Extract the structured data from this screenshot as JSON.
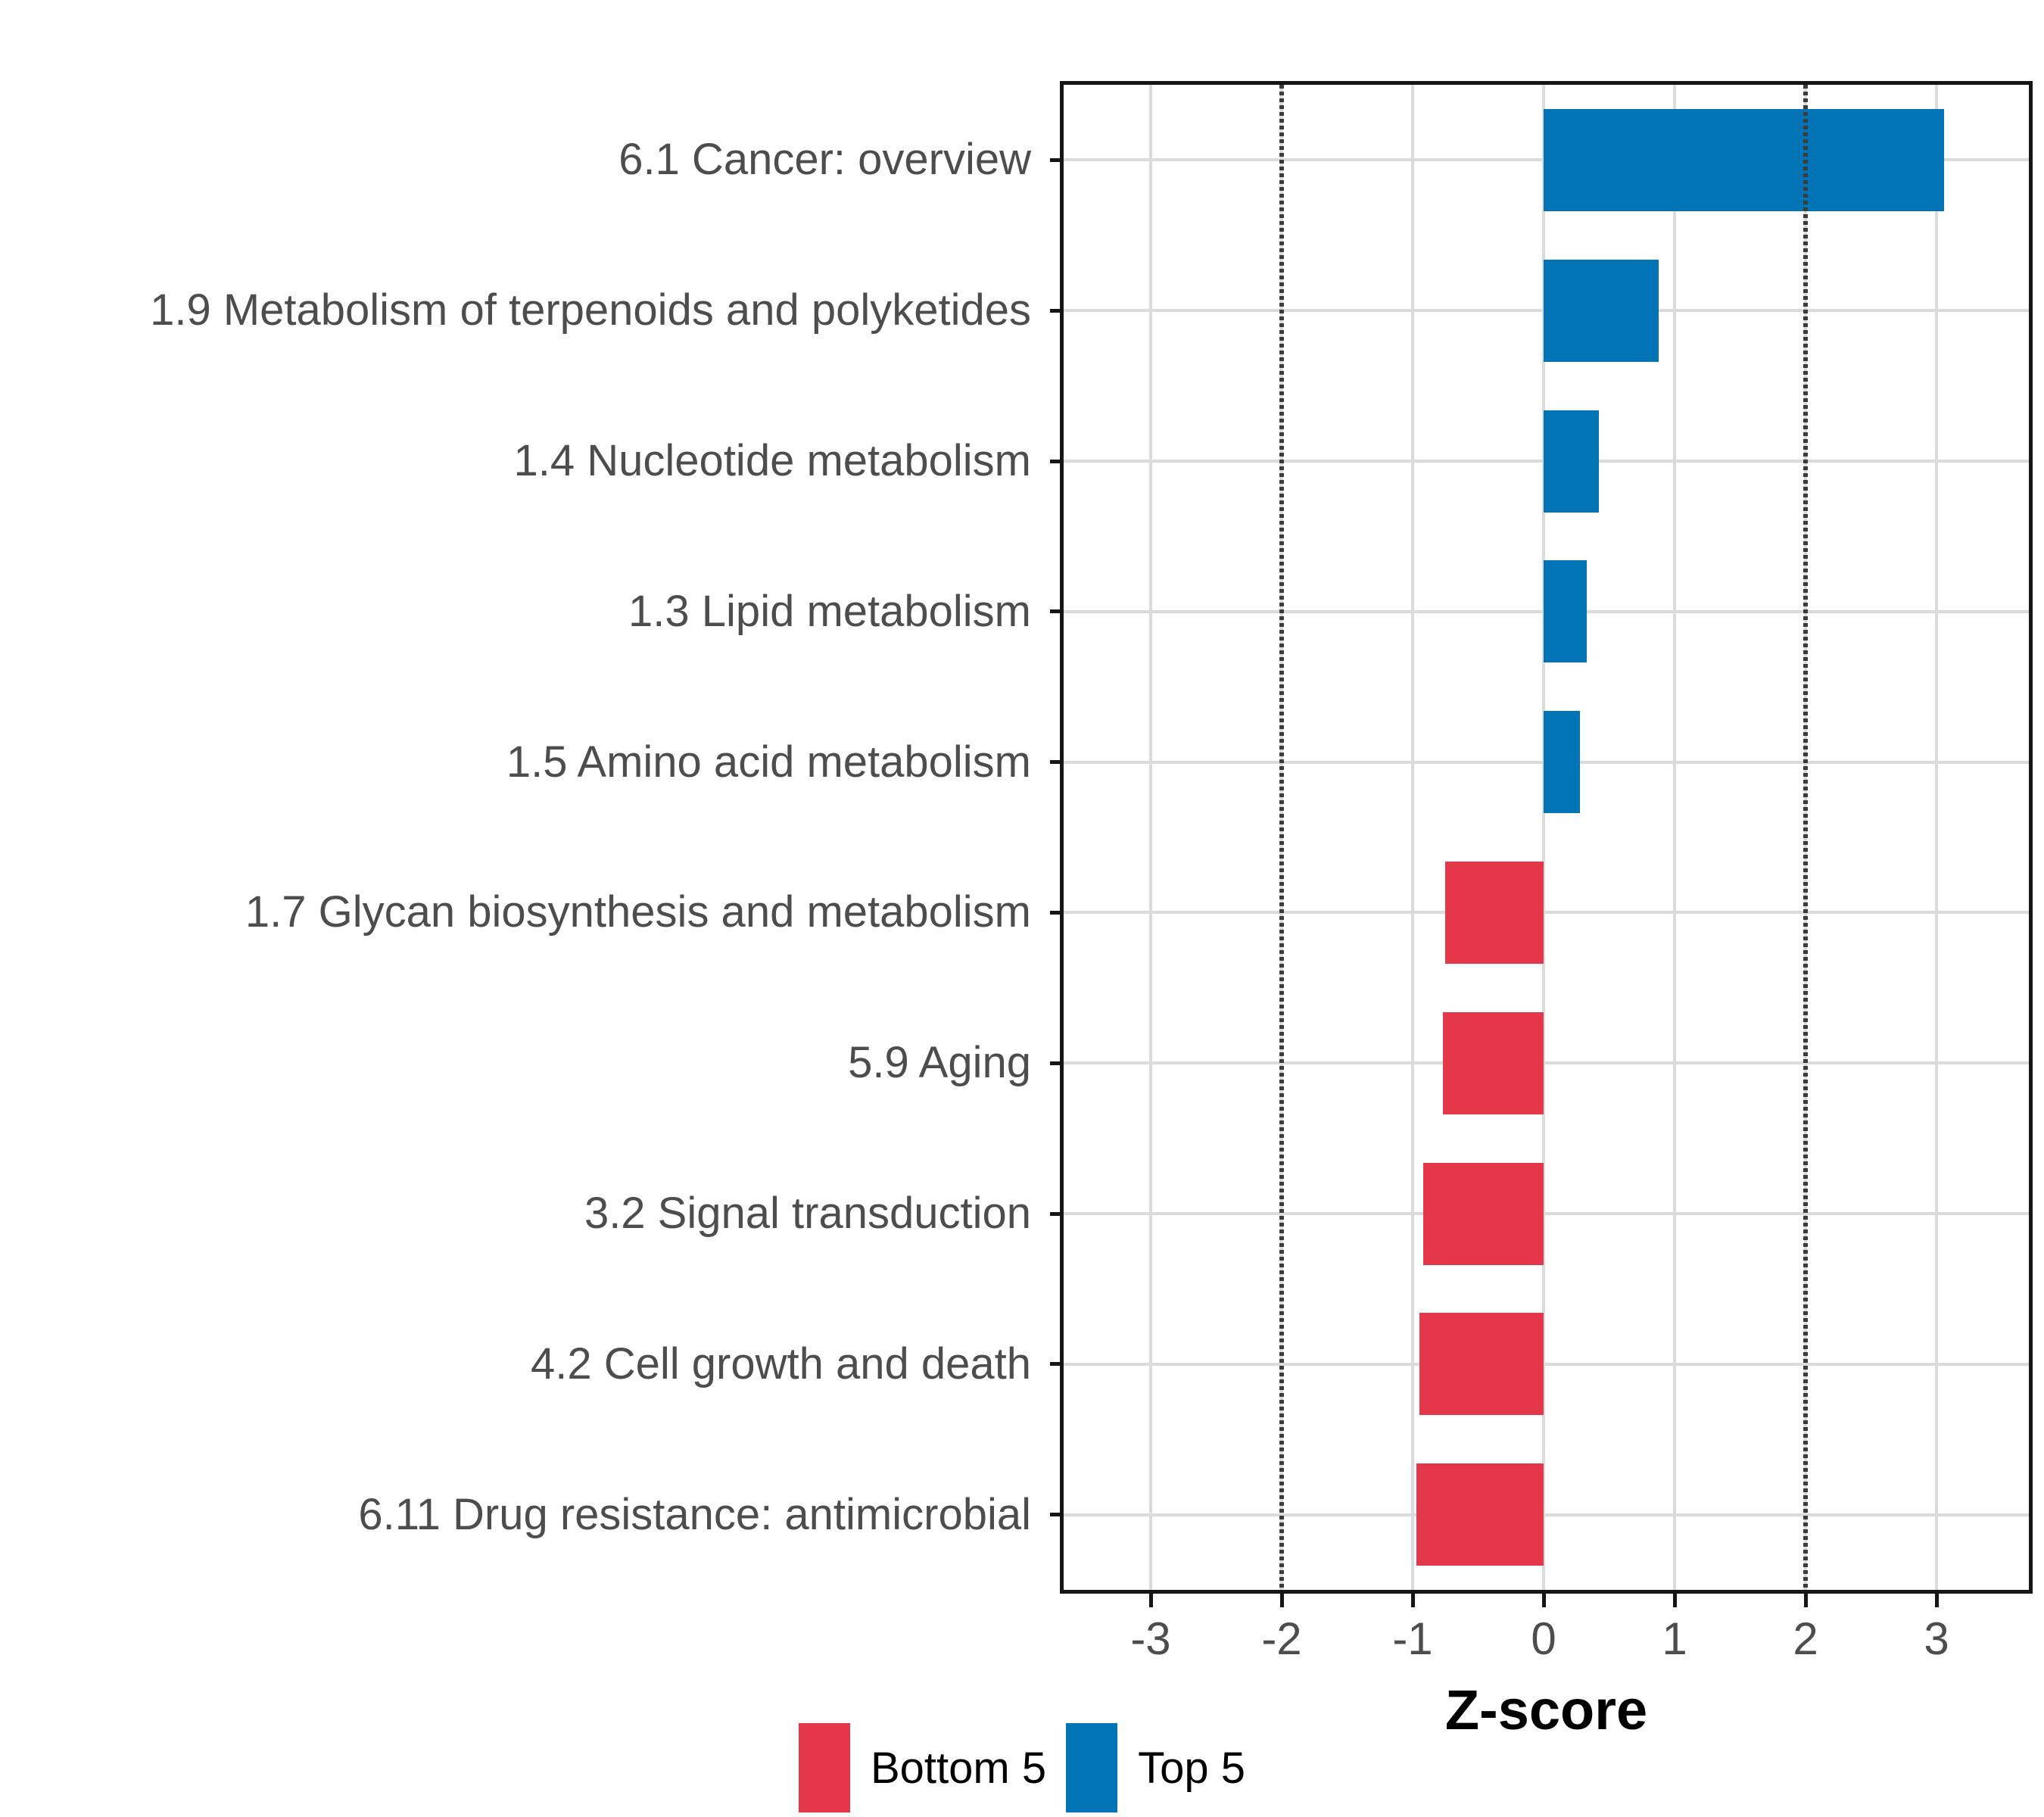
{
  "chart_data": {
    "type": "bar",
    "orientation": "horizontal",
    "title": "",
    "xlabel": "Z-score",
    "ylabel": "",
    "x_ticks": [
      -3,
      -2,
      -1,
      0,
      1,
      2,
      3
    ],
    "xlim": [
      -3.67,
      3.7
    ],
    "grid": true,
    "legend_position": "bottom",
    "reference_lines": {
      "x": [
        -2,
        2
      ],
      "linestyle": "dotted"
    },
    "bars": [
      {
        "label": "6.1 Cancer: overview",
        "value": 3.06,
        "group": "Top 5"
      },
      {
        "label": "1.9 Metabolism of terpenoids and polyketides",
        "value": 0.88,
        "group": "Top 5"
      },
      {
        "label": "1.4 Nucleotide metabolism",
        "value": 0.42,
        "group": "Top 5"
      },
      {
        "label": "1.3 Lipid metabolism",
        "value": 0.33,
        "group": "Top 5"
      },
      {
        "label": "1.5 Amino acid metabolism",
        "value": 0.28,
        "group": "Top 5"
      },
      {
        "label": "1.7 Glycan biosynthesis and metabolism",
        "value": -0.75,
        "group": "Bottom 5"
      },
      {
        "label": "5.9 Aging",
        "value": -0.77,
        "group": "Bottom 5"
      },
      {
        "label": "3.2 Signal transduction",
        "value": -0.92,
        "group": "Bottom 5"
      },
      {
        "label": "4.2 Cell growth and death",
        "value": -0.95,
        "group": "Bottom 5"
      },
      {
        "label": "6.11 Drug resistance: antimicrobial",
        "value": -0.97,
        "group": "Bottom 5"
      }
    ],
    "legend": [
      {
        "label": "Bottom 5",
        "color": "#E4384A"
      },
      {
        "label": "Top 5",
        "color": "#0074B4"
      }
    ],
    "colors": {
      "Top 5": "#0074B4",
      "Bottom 5": "#E4384A"
    },
    "axis_text_color": "#4D4D4D",
    "gridline_color": "#DBDBDB",
    "reference_line_color": "#3C3C3C"
  }
}
